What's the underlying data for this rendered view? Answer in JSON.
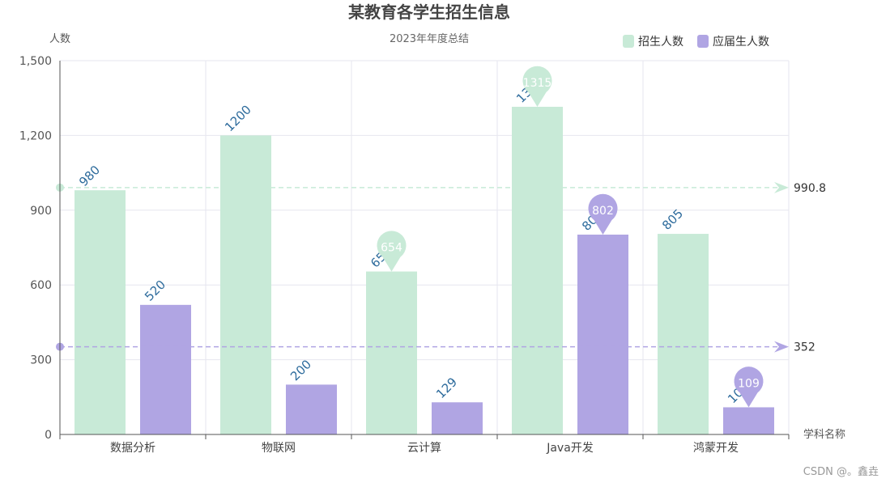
{
  "watermark": "CSDN @。鑫垚",
  "chart_data": {
    "type": "bar",
    "title": "某教育各学生招生信息",
    "subtitle": "2023年年度总结",
    "ylabel": "人数",
    "xlabel": "学科名称",
    "categories": [
      "数据分析",
      "物联网",
      "云计算",
      "Java开发",
      "鸿蒙开发"
    ],
    "ylim": [
      0,
      1500
    ],
    "yticks": [
      0,
      300,
      600,
      900,
      1200,
      1500
    ],
    "ytick_labels": [
      "0",
      "300",
      "600",
      "900",
      "1,200",
      "1,500"
    ],
    "grid": true,
    "legend_position": "top-right",
    "series": [
      {
        "name": "招生人数",
        "values": [
          980,
          1200,
          654,
          1315,
          805
        ],
        "color": "#c8ead7",
        "max_marker": 1315,
        "min_marker": 654,
        "average": 990.8,
        "average_label": "990.8"
      },
      {
        "name": "应届生人数",
        "values": [
          520,
          200,
          129,
          802,
          109
        ],
        "color": "#b0a5e3",
        "max_marker": 802,
        "min_marker": 109,
        "average": 352,
        "average_label": "352"
      }
    ],
    "label_color": "#2d6b9c"
  }
}
